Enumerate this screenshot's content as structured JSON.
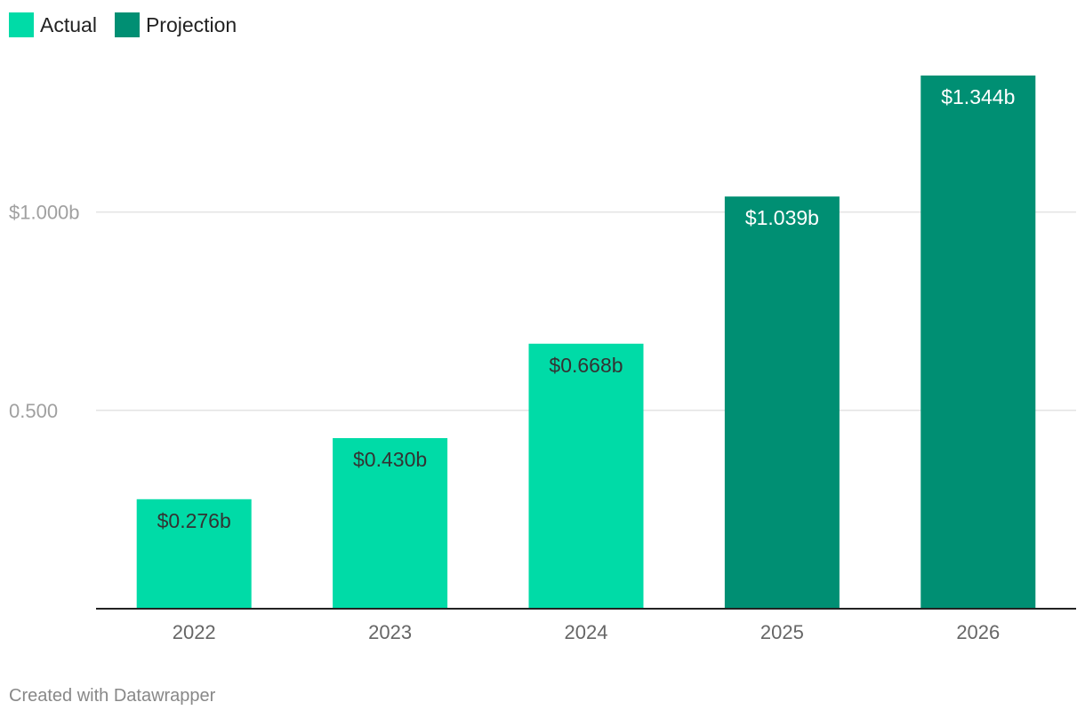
{
  "chart_data": {
    "type": "bar",
    "categories": [
      "2022",
      "2023",
      "2024",
      "2025",
      "2026"
    ],
    "values": [
      0.276,
      0.43,
      0.668,
      1.039,
      1.344
    ],
    "data_labels": [
      "$0.276b",
      "$0.430b",
      "$0.668b",
      "$1.039b",
      "$1.344b"
    ],
    "series_of_bar": [
      "Actual",
      "Actual",
      "Actual",
      "Projection",
      "Projection"
    ],
    "legend": [
      {
        "name": "Actual",
        "color": "#00dba7"
      },
      {
        "name": "Projection",
        "color": "#008f73"
      }
    ],
    "legend_position": "top-left",
    "y_ticks": [
      {
        "value": 0.5,
        "label": "0.500"
      },
      {
        "value": 1.0,
        "label": "$1.000b"
      }
    ],
    "ylim": [
      0,
      1.344
    ],
    "grid": true,
    "colors": {
      "Actual": "#00dba7",
      "Projection": "#008f73",
      "label_on_actual": "#333333",
      "label_on_projection": "#ffffff",
      "grid": "#e3e3e3",
      "axis": "#222222",
      "tick_text": "#a0a0a0",
      "category_text": "#666666"
    }
  },
  "footer": {
    "credit": "Created with Datawrapper"
  }
}
